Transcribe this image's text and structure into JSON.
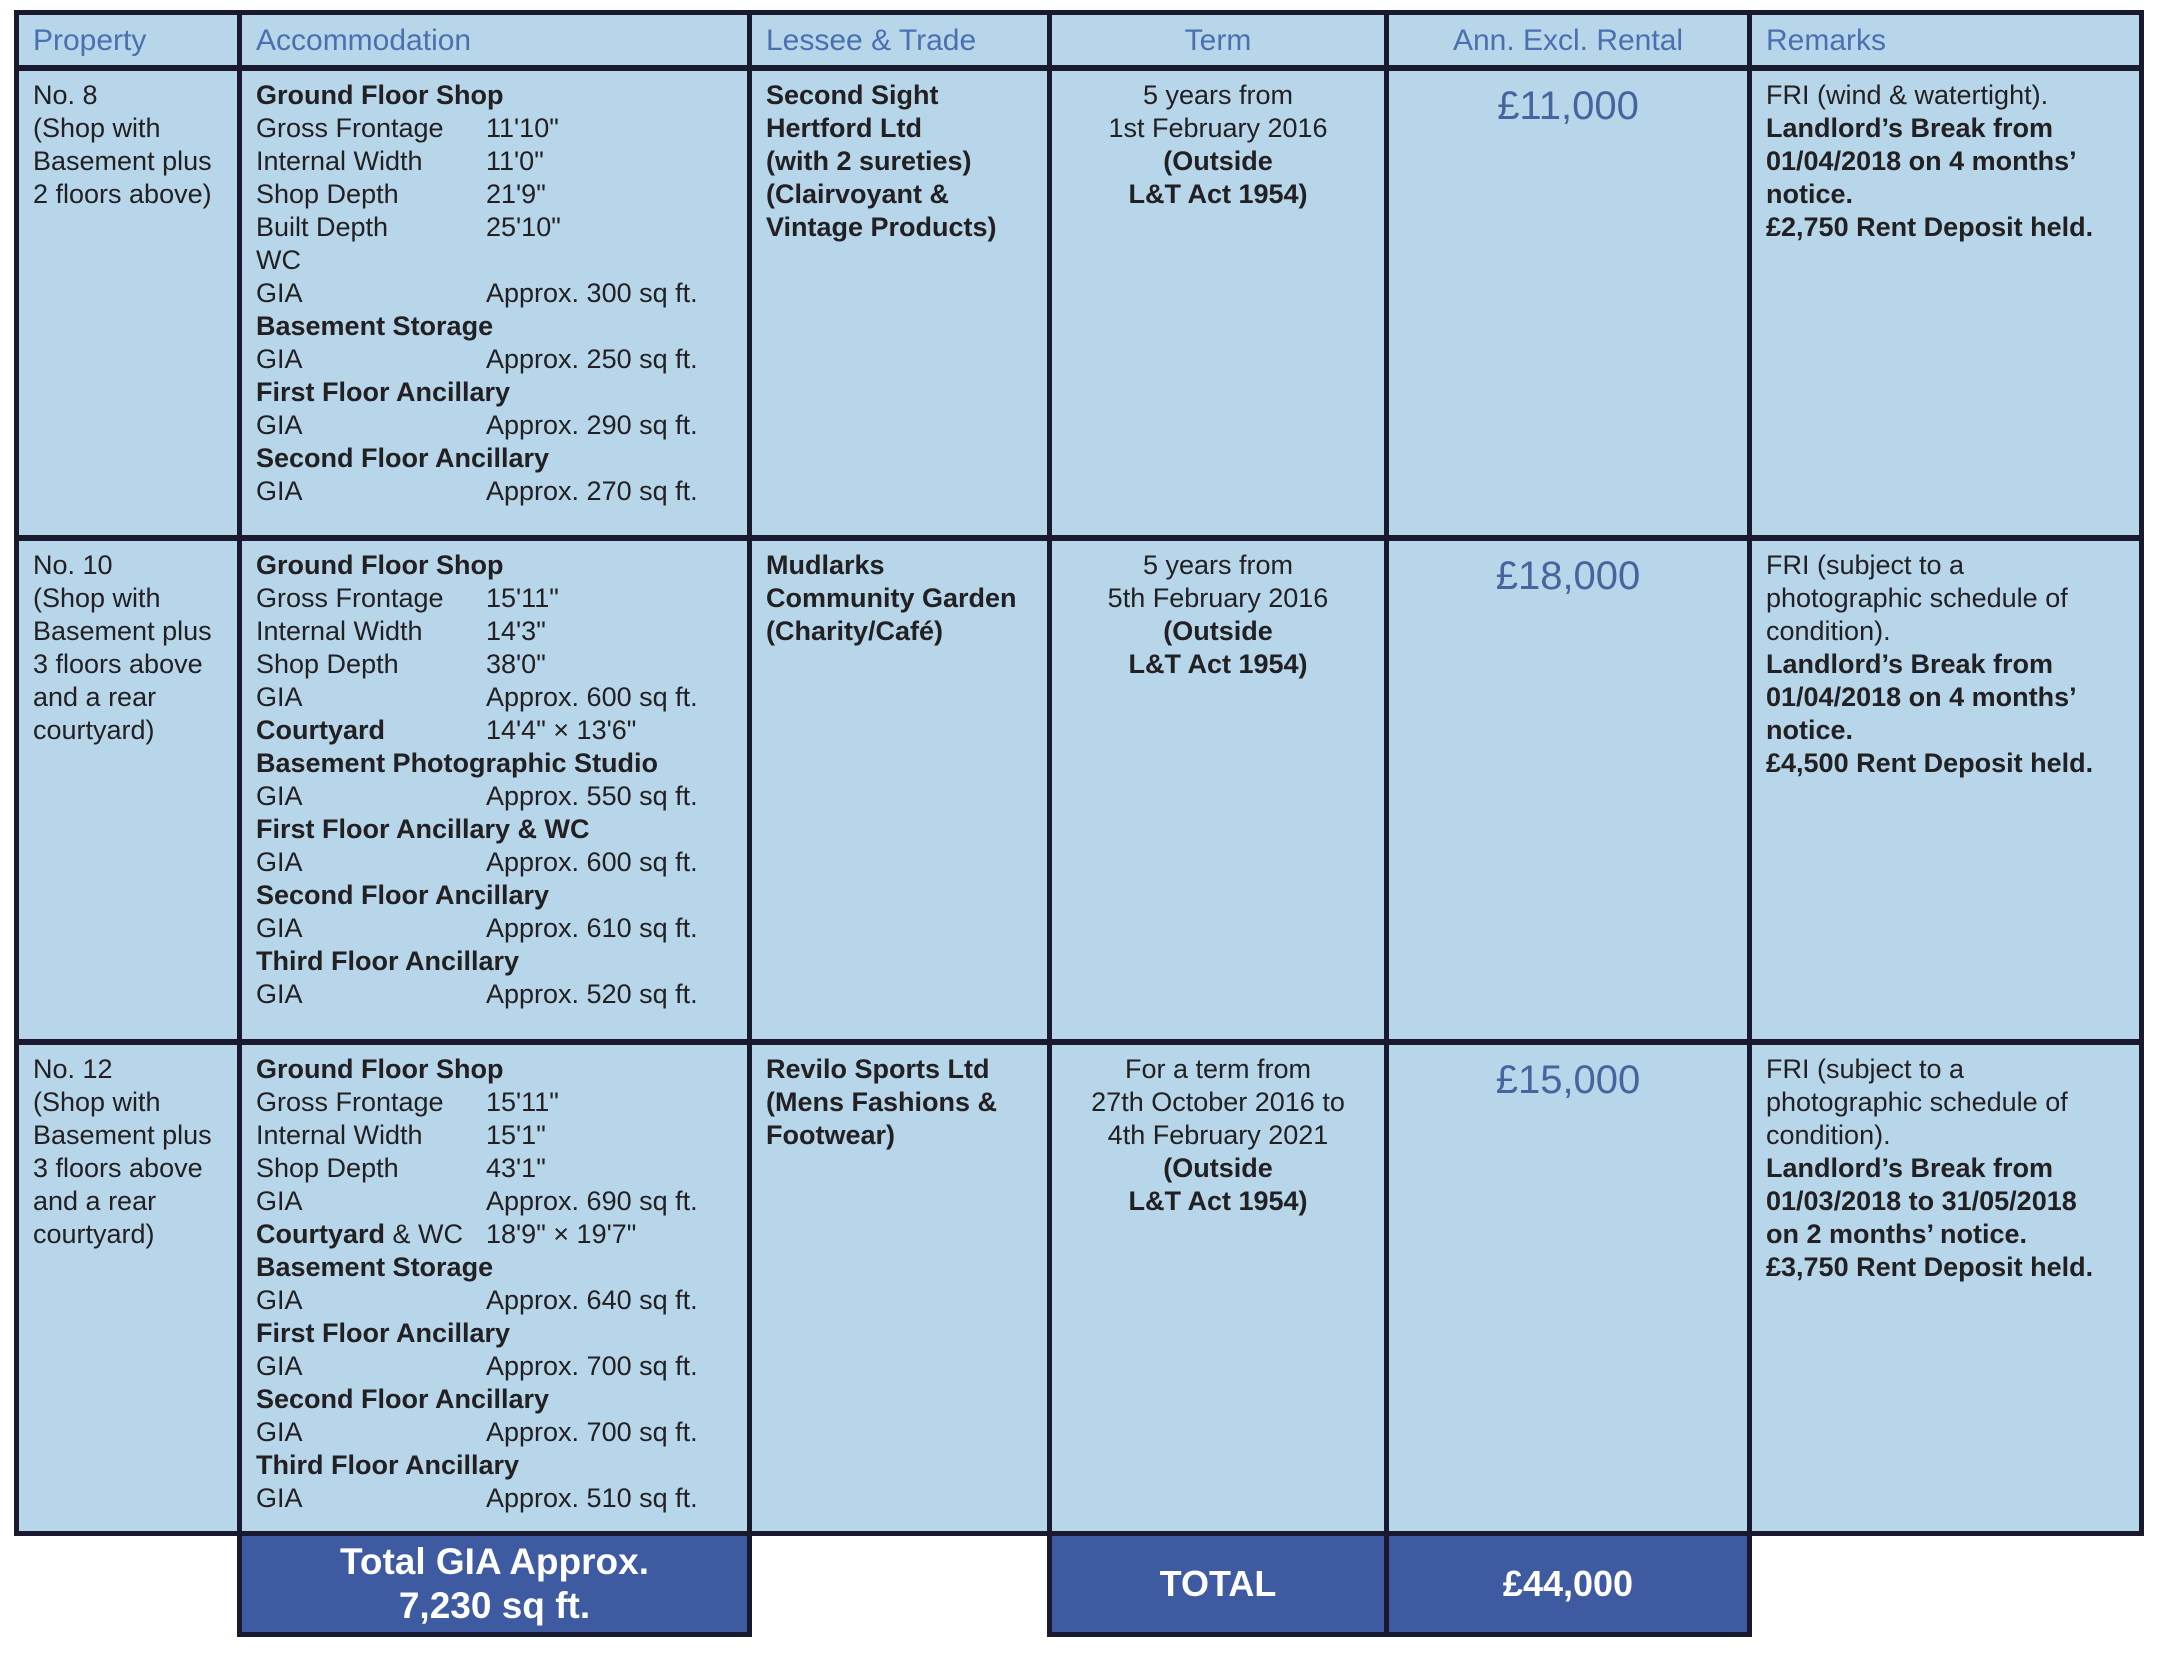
{
  "document_type": "tenancy-schedule-table",
  "colors": {
    "cell_background": "#b7d6e9",
    "table_border": "#191930",
    "header_text": "#4a70b0",
    "body_text": "#222022",
    "rental_text": "#46659f",
    "total_band_background": "#3e5aa0",
    "total_band_text": "#ffffff"
  },
  "header": {
    "columns": [
      "Property",
      "Accommodation",
      "Lessee & Trade",
      "Term",
      "Ann. Excl. Rental",
      "Remarks"
    ]
  },
  "rows": [
    {
      "property": [
        "No. 8",
        "(Shop with",
        "Basement plus",
        "2 floors above)"
      ],
      "accommodation": [
        {
          "head": "Ground Floor Shop"
        },
        {
          "label": "Gross Frontage",
          "value": "11'10\""
        },
        {
          "label": "Internal Width",
          "value": "11'0\""
        },
        {
          "label": "Shop Depth",
          "value": "21'9\""
        },
        {
          "label": "Built Depth",
          "value": "25'10\""
        },
        {
          "label": "WC"
        },
        {
          "label": "GIA",
          "value": "Approx. 300 sq ft."
        },
        {
          "head": "Basement Storage"
        },
        {
          "label": "GIA",
          "value": "Approx. 250 sq ft."
        },
        {
          "head": "First Floor Ancillary"
        },
        {
          "label": "GIA",
          "value": "Approx. 290 sq ft."
        },
        {
          "head": "Second Floor Ancillary"
        },
        {
          "label": "GIA",
          "value": "Approx. 270 sq ft."
        }
      ],
      "lessee": [
        "Second Sight",
        "Hertford Ltd",
        "(with 2 sureties)",
        "(Clairvoyant &",
        "Vintage Products)"
      ],
      "term": [
        {
          "t": "5 years from"
        },
        {
          "t": "1st February 2016"
        },
        {
          "t": "(Outside",
          "b": true
        },
        {
          "t": "L&T Act 1954)",
          "b": true
        }
      ],
      "rental": "£11,000",
      "remarks": [
        {
          "t": "FRI (wind & watertight)."
        },
        {
          "t": "Landlord’s Break from",
          "b": true
        },
        {
          "t": "01/04/2018 on 4 months’",
          "b": true
        },
        {
          "t": "notice.",
          "b": true
        },
        {
          "t": "£2,750 Rent Deposit held.",
          "b": true
        }
      ]
    },
    {
      "property": [
        "No. 10",
        "(Shop with",
        "Basement plus",
        "3 floors above",
        "and a rear",
        "courtyard)"
      ],
      "accommodation": [
        {
          "head": "Ground Floor Shop"
        },
        {
          "label": "Gross Frontage",
          "value": "15'11\""
        },
        {
          "label": "Internal Width",
          "value": "14'3\""
        },
        {
          "label": "Shop Depth",
          "value": "38'0\""
        },
        {
          "label": "GIA",
          "value": "Approx. 600 sq ft."
        },
        {
          "label_bold": "Courtyard",
          "value": "14'4\" × 13'6\""
        },
        {
          "head": "Basement Photographic Studio"
        },
        {
          "label": "GIA",
          "value": "Approx. 550 sq ft."
        },
        {
          "head": "First Floor Ancillary & WC"
        },
        {
          "label": "GIA",
          "value": "Approx. 600 sq ft."
        },
        {
          "head": "Second Floor Ancillary"
        },
        {
          "label": "GIA",
          "value": "Approx. 610 sq ft."
        },
        {
          "head": "Third Floor Ancillary"
        },
        {
          "label": "GIA",
          "value": "Approx. 520 sq ft."
        }
      ],
      "lessee": [
        "Mudlarks",
        "Community Garden",
        "(Charity/Café)"
      ],
      "term": [
        {
          "t": "5 years from"
        },
        {
          "t": "5th February 2016"
        },
        {
          "t": "(Outside",
          "b": true
        },
        {
          "t": "L&T Act 1954)",
          "b": true
        }
      ],
      "rental": "£18,000",
      "remarks": [
        {
          "t": "FRI (subject to a"
        },
        {
          "t": "photographic schedule of"
        },
        {
          "t": "condition)."
        },
        {
          "t": "Landlord’s Break from",
          "b": true
        },
        {
          "t": "01/04/2018 on 4 months’",
          "b": true
        },
        {
          "t": "notice.",
          "b": true
        },
        {
          "t": "£4,500 Rent Deposit held.",
          "b": true
        }
      ]
    },
    {
      "property": [
        "No. 12",
        "(Shop with",
        "Basement plus",
        "3 floors above",
        "and a rear",
        "courtyard)"
      ],
      "accommodation": [
        {
          "head": "Ground Floor Shop"
        },
        {
          "label": "Gross Frontage",
          "value": "15'11\""
        },
        {
          "label": "Internal Width",
          "value": "15'1\""
        },
        {
          "label": "Shop Depth",
          "value": "43'1\""
        },
        {
          "label": "GIA",
          "value": "Approx. 690 sq ft."
        },
        {
          "label_bold": "Courtyard",
          "label": " & WC",
          "value": "18'9\" × 19'7\""
        },
        {
          "head": "Basement Storage"
        },
        {
          "label": "GIA",
          "value": "Approx. 640 sq ft."
        },
        {
          "head": "First Floor Ancillary"
        },
        {
          "label": "GIA",
          "value": "Approx. 700 sq ft."
        },
        {
          "head": "Second Floor Ancillary"
        },
        {
          "label": "GIA",
          "value": "Approx. 700 sq ft."
        },
        {
          "head": "Third Floor Ancillary"
        },
        {
          "label": "GIA",
          "value": "Approx. 510 sq ft."
        }
      ],
      "lessee": [
        "Revilo Sports Ltd",
        "(Mens Fashions &",
        "Footwear)"
      ],
      "term": [
        {
          "t": "For a term from"
        },
        {
          "t": "27th October 2016 to"
        },
        {
          "t": "4th February 2021"
        },
        {
          "t": "(Outside",
          "b": true
        },
        {
          "t": "L&T Act 1954)",
          "b": true
        }
      ],
      "rental": "£15,000",
      "remarks": [
        {
          "t": "FRI (subject to a"
        },
        {
          "t": "photographic schedule of"
        },
        {
          "t": "condition)."
        },
        {
          "t": "Landlord’s Break from",
          "b": true
        },
        {
          "t": "01/03/2018 to 31/05/2018",
          "b": true
        },
        {
          "t": "on 2 months’ notice.",
          "b": true
        },
        {
          "t": "£3,750 Rent Deposit held.",
          "b": true
        }
      ]
    }
  ],
  "totals": {
    "gia_line1": "Total GIA Approx.",
    "gia_line2": "7,230 sq ft.",
    "total_label": "TOTAL",
    "total_rental": "£44,000"
  }
}
